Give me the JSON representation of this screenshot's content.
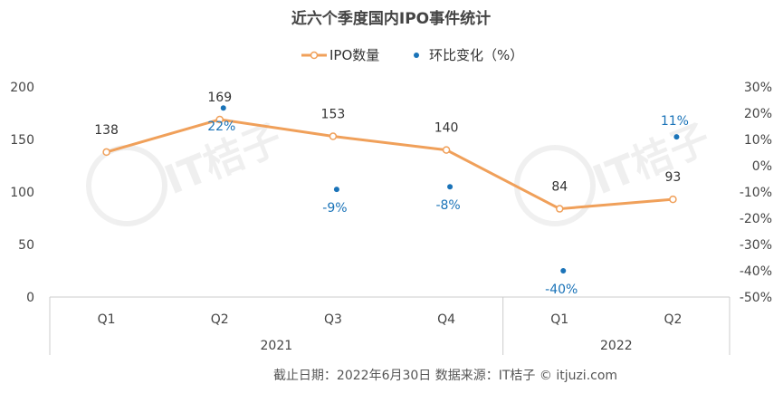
{
  "chart_data": {
    "type": "line",
    "title": "近六个季度国内IPO事件统计",
    "categories": [
      "Q1",
      "Q2",
      "Q3",
      "Q4",
      "Q1",
      "Q2"
    ],
    "category_groups": [
      {
        "label": "2021",
        "span": 4
      },
      {
        "label": "2022",
        "span": 2
      }
    ],
    "series": [
      {
        "name": "IPO数量",
        "type": "line",
        "axis": "left",
        "color": "#f0a05a",
        "values": [
          138,
          169,
          153,
          140,
          84,
          93
        ],
        "labels": [
          "138",
          "169",
          "153",
          "140",
          "84",
          "93"
        ]
      },
      {
        "name": "环比变化（%）",
        "type": "scatter",
        "axis": "right",
        "color": "#1a73b8",
        "values": [
          null,
          22,
          -9,
          -8,
          -40,
          11
        ],
        "labels": [
          "",
          "22%",
          "-9%",
          "-8%",
          "-40%",
          "11%"
        ]
      }
    ],
    "y_left": {
      "min": 0,
      "max": 200,
      "ticks": [
        "0",
        "50",
        "100",
        "150",
        "200"
      ]
    },
    "y_right": {
      "min": -50,
      "max": 30,
      "ticks": [
        "-50%",
        "-40%",
        "-30%",
        "-20%",
        "-10%",
        "0%",
        "10%",
        "20%",
        "30%"
      ]
    },
    "legend_position": "top-center",
    "watermark": "IT桔子 ITJUZI.COM"
  },
  "footer": {
    "source": "截止日期：2022年6月30日  数据来源：IT桔子 © itjuzi.com"
  }
}
